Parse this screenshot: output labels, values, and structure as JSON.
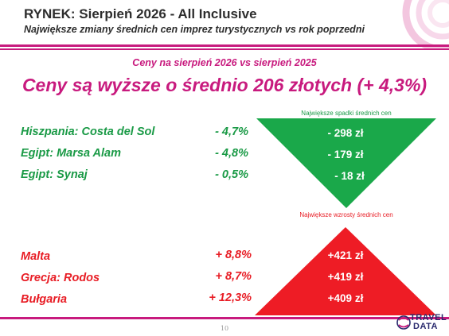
{
  "header": {
    "title": "RYNEK: Sierpień 2026 - All Inclusive",
    "subtitle": "Największe zmiany średnich cen imprez turystycznych vs rok poprzedni"
  },
  "summary": {
    "comparison": "Ceny na sierpień 2026 vs sierpień 2025",
    "headline": "Ceny są wyższe o średnio 206 złotych (+ 4,3%)"
  },
  "decreases": {
    "caption": "Największe spadki średnich cen",
    "items": [
      {
        "destination": "Hiszpania: Costa del Sol",
        "percent": "- 4,7%",
        "amount": "- 298 zł"
      },
      {
        "destination": "Egipt: Marsa Alam",
        "percent": "- 4,8%",
        "amount": "- 179 zł"
      },
      {
        "destination": "Egipt: Synaj",
        "percent": "- 0,5%",
        "amount": "- 18 zł"
      }
    ]
  },
  "increases": {
    "caption": "Największe wzrosty średnich cen",
    "items": [
      {
        "destination": "Malta",
        "percent": "+ 8,8%",
        "amount": "+421 zł"
      },
      {
        "destination": "Grecja: Rodos",
        "percent": "+ 8,7%",
        "amount": "+419 zł"
      },
      {
        "destination": "Bułgaria",
        "percent": "+ 12,3%",
        "amount": "+409 zł"
      }
    ]
  },
  "footer": {
    "page_number": "10",
    "logo_line1": "TRAVEL",
    "logo_line2": "DATA"
  },
  "colors": {
    "accent": "#c81a7e",
    "green": "#1a9a46",
    "red": "#e81c24"
  }
}
